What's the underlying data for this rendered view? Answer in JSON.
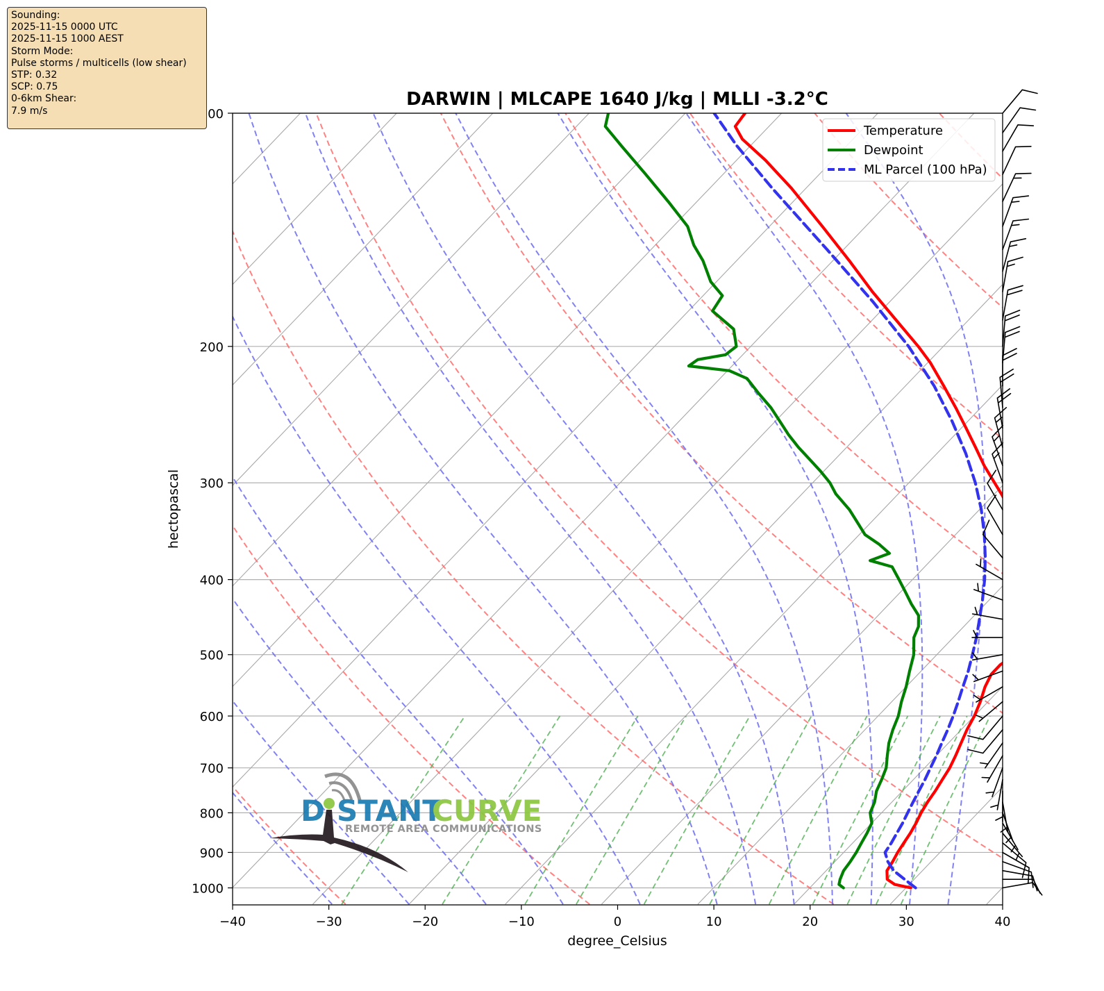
{
  "info_box": {
    "lines": [
      "Sounding:",
      "2025-11-15 0000 UTC",
      "2025-11-15 1000 AEST",
      "Storm Mode:",
      "Pulse storms / multicells (low shear)",
      "STP: 0.32",
      "SCP: 0.75",
      "0-6km Shear:",
      "7.9 m/s"
    ]
  },
  "logo": {
    "text_left": "D",
    "text_mid": "STANT",
    "text_right": "CURVE",
    "tagline": "REMOTE AREA COMMUNICATIONS"
  },
  "colors": {
    "temperature": "#ff0000",
    "dewpoint": "#008000",
    "parcel": "#3333ee",
    "dry_adiabat": "#ff6b6b",
    "moist_adiabat": "#6b6bee",
    "mixing_ratio": "#4caf50",
    "logo_blue": "#1a7bb0",
    "logo_green": "#8cc63f"
  },
  "chart_data": {
    "type": "skew-t",
    "title": "DARWIN | MLCAPE 1640 J/kg | MLLI -3.2°C",
    "xlabel": "degree_Celsius",
    "ylabel": "hectopascal",
    "xlim": [
      -40,
      40
    ],
    "ylim": [
      1050,
      100
    ],
    "y_scale": "log",
    "x_ticks": [
      "−40",
      "−30",
      "−20",
      "−10",
      "0",
      "10",
      "20",
      "30",
      "40"
    ],
    "y_ticks": [
      "100",
      "200",
      "300",
      "400",
      "500",
      "600",
      "700",
      "800",
      "900",
      "1000"
    ],
    "legend_position": "top-right",
    "series": [
      {
        "name": "Temperature",
        "style": "solid",
        "points": [
          [
            1000,
            30.5
          ],
          [
            990,
            28.5
          ],
          [
            975,
            27.2
          ],
          [
            950,
            26.3
          ],
          [
            925,
            26.0
          ],
          [
            900,
            25.6
          ],
          [
            875,
            25.3
          ],
          [
            850,
            25.0
          ],
          [
            825,
            24.6
          ],
          [
            800,
            24.1
          ],
          [
            775,
            23.7
          ],
          [
            750,
            23.4
          ],
          [
            725,
            23.0
          ],
          [
            700,
            22.6
          ],
          [
            675,
            22.0
          ],
          [
            650,
            21.3
          ],
          [
            625,
            20.6
          ],
          [
            600,
            20.0
          ],
          [
            575,
            19.2
          ],
          [
            550,
            18.2
          ],
          [
            530,
            17.6
          ],
          [
            515,
            17.6
          ],
          [
            500,
            18.2
          ],
          [
            485,
            17.6
          ],
          [
            470,
            17.0
          ],
          [
            455,
            16.3
          ],
          [
            440,
            15.8
          ],
          [
            425,
            15.0
          ],
          [
            410,
            13.8
          ],
          [
            400,
            12.9
          ],
          [
            385,
            11.3
          ],
          [
            370,
            9.5
          ],
          [
            355,
            7.6
          ],
          [
            340,
            5.4
          ],
          [
            325,
            3.2
          ],
          [
            310,
            0.7
          ],
          [
            300,
            -1.1
          ],
          [
            285,
            -3.9
          ],
          [
            270,
            -6.6
          ],
          [
            255,
            -9.5
          ],
          [
            240,
            -12.6
          ],
          [
            225,
            -16.0
          ],
          [
            210,
            -19.7
          ],
          [
            200,
            -22.6
          ],
          [
            185,
            -27.5
          ],
          [
            170,
            -32.8
          ],
          [
            155,
            -38.3
          ],
          [
            140,
            -44.5
          ],
          [
            125,
            -51.5
          ],
          [
            115,
            -57.0
          ],
          [
            108,
            -61.5
          ],
          [
            104,
            -63.5
          ],
          [
            100,
            -63.8
          ]
        ]
      },
      {
        "name": "Dewpoint",
        "style": "solid",
        "points": [
          [
            1000,
            23.5
          ],
          [
            990,
            22.7
          ],
          [
            975,
            22.3
          ],
          [
            950,
            21.8
          ],
          [
            925,
            21.6
          ],
          [
            900,
            21.3
          ],
          [
            875,
            20.9
          ],
          [
            850,
            20.5
          ],
          [
            825,
            20.0
          ],
          [
            800,
            18.8
          ],
          [
            775,
            18.2
          ],
          [
            750,
            17.3
          ],
          [
            725,
            16.7
          ],
          [
            700,
            16.0
          ],
          [
            675,
            14.9
          ],
          [
            650,
            13.8
          ],
          [
            625,
            12.9
          ],
          [
            600,
            12.1
          ],
          [
            575,
            11.0
          ],
          [
            550,
            10.0
          ],
          [
            525,
            8.8
          ],
          [
            500,
            7.6
          ],
          [
            475,
            5.9
          ],
          [
            460,
            5.3
          ],
          [
            445,
            4.2
          ],
          [
            430,
            2.3
          ],
          [
            415,
            0.5
          ],
          [
            400,
            -1.4
          ],
          [
            385,
            -3.4
          ],
          [
            378,
            -6.3
          ],
          [
            370,
            -5.0
          ],
          [
            360,
            -7.0
          ],
          [
            350,
            -9.4
          ],
          [
            340,
            -11.0
          ],
          [
            325,
            -13.5
          ],
          [
            310,
            -16.5
          ],
          [
            300,
            -18.2
          ],
          [
            290,
            -20.3
          ],
          [
            280,
            -22.6
          ],
          [
            270,
            -25.0
          ],
          [
            260,
            -27.3
          ],
          [
            250,
            -29.5
          ],
          [
            240,
            -31.8
          ],
          [
            230,
            -34.5
          ],
          [
            220,
            -37.2
          ],
          [
            215,
            -39.8
          ],
          [
            212,
            -44.5
          ],
          [
            208,
            -44.2
          ],
          [
            205,
            -41.8
          ],
          [
            200,
            -41.5
          ],
          [
            190,
            -43.5
          ],
          [
            180,
            -47.5
          ],
          [
            172,
            -48.0
          ],
          [
            165,
            -50.6
          ],
          [
            155,
            -53.5
          ],
          [
            148,
            -56.0
          ],
          [
            140,
            -58.5
          ],
          [
            130,
            -63.0
          ],
          [
            120,
            -68.0
          ],
          [
            110,
            -73.5
          ],
          [
            104,
            -77.0
          ],
          [
            100,
            -78.0
          ]
        ]
      },
      {
        "name": "ML Parcel (100 hPa)",
        "style": "dashed",
        "points": [
          [
            1000,
            31.0
          ],
          [
            975,
            29.0
          ],
          [
            950,
            27.0
          ],
          [
            925,
            25.5
          ],
          [
            900,
            24.3
          ],
          [
            875,
            24.0
          ],
          [
            850,
            23.6
          ],
          [
            825,
            23.2
          ],
          [
            800,
            22.7
          ],
          [
            775,
            22.2
          ],
          [
            750,
            21.7
          ],
          [
            725,
            21.2
          ],
          [
            700,
            20.6
          ],
          [
            675,
            20.0
          ],
          [
            650,
            19.3
          ],
          [
            625,
            18.6
          ],
          [
            600,
            17.8
          ],
          [
            575,
            16.9
          ],
          [
            550,
            15.9
          ],
          [
            525,
            14.9
          ],
          [
            500,
            13.7
          ],
          [
            475,
            12.4
          ],
          [
            450,
            10.9
          ],
          [
            425,
            9.3
          ],
          [
            400,
            7.5
          ],
          [
            375,
            5.4
          ],
          [
            350,
            3.0
          ],
          [
            325,
            0.2
          ],
          [
            300,
            -3.1
          ],
          [
            275,
            -7.0
          ],
          [
            250,
            -11.6
          ],
          [
            225,
            -17.0
          ],
          [
            200,
            -23.6
          ],
          [
            175,
            -31.8
          ],
          [
            150,
            -41.7
          ],
          [
            125,
            -53.5
          ],
          [
            110,
            -61.5
          ],
          [
            100,
            -67.0
          ]
        ]
      }
    ],
    "wind_barbs": [
      {
        "p": 1000,
        "dir": 80,
        "kt": 10
      },
      {
        "p": 975,
        "dir": 90,
        "kt": 10
      },
      {
        "p": 950,
        "dir": 100,
        "kt": 10
      },
      {
        "p": 925,
        "dir": 110,
        "kt": 10
      },
      {
        "p": 900,
        "dir": 120,
        "kt": 10
      },
      {
        "p": 875,
        "dir": 130,
        "kt": 10
      },
      {
        "p": 850,
        "dir": 140,
        "kt": 5
      },
      {
        "p": 825,
        "dir": 150,
        "kt": 5
      },
      {
        "p": 800,
        "dir": 160,
        "kt": 5
      },
      {
        "p": 775,
        "dir": 170,
        "kt": 5
      },
      {
        "p": 750,
        "dir": 180,
        "kt": 5
      },
      {
        "p": 725,
        "dir": 190,
        "kt": 5
      },
      {
        "p": 700,
        "dir": 200,
        "kt": 5
      },
      {
        "p": 675,
        "dir": 210,
        "kt": 5
      },
      {
        "p": 650,
        "dir": 215,
        "kt": 5
      },
      {
        "p": 625,
        "dir": 220,
        "kt": 10
      },
      {
        "p": 600,
        "dir": 220,
        "kt": 10
      },
      {
        "p": 575,
        "dir": 230,
        "kt": 5
      },
      {
        "p": 550,
        "dir": 240,
        "kt": 5
      },
      {
        "p": 525,
        "dir": 250,
        "kt": 5
      },
      {
        "p": 500,
        "dir": 260,
        "kt": 5
      },
      {
        "p": 475,
        "dir": 270,
        "kt": 5
      },
      {
        "p": 450,
        "dir": 280,
        "kt": 5
      },
      {
        "p": 425,
        "dir": 290,
        "kt": 5
      },
      {
        "p": 400,
        "dir": 300,
        "kt": 5
      },
      {
        "p": 375,
        "dir": 320,
        "kt": 10
      },
      {
        "p": 350,
        "dir": 330,
        "kt": 10
      },
      {
        "p": 325,
        "dir": 330,
        "kt": 10
      },
      {
        "p": 300,
        "dir": 340,
        "kt": 15
      },
      {
        "p": 285,
        "dir": 340,
        "kt": 15
      },
      {
        "p": 270,
        "dir": 345,
        "kt": 15
      },
      {
        "p": 255,
        "dir": 350,
        "kt": 20
      },
      {
        "p": 240,
        "dir": 355,
        "kt": 20
      },
      {
        "p": 225,
        "dir": 0,
        "kt": 20
      },
      {
        "p": 210,
        "dir": 5,
        "kt": 20
      },
      {
        "p": 200,
        "dir": 5,
        "kt": 20
      },
      {
        "p": 185,
        "dir": 10,
        "kt": 20
      },
      {
        "p": 170,
        "dir": 10,
        "kt": 15
      },
      {
        "p": 160,
        "dir": 15,
        "kt": 15
      },
      {
        "p": 150,
        "dir": 20,
        "kt": 15
      },
      {
        "p": 140,
        "dir": 20,
        "kt": 15
      },
      {
        "p": 130,
        "dir": 25,
        "kt": 15
      },
      {
        "p": 120,
        "dir": 25,
        "kt": 10
      },
      {
        "p": 112,
        "dir": 30,
        "kt": 10
      },
      {
        "p": 106,
        "dir": 35,
        "kt": 10
      },
      {
        "p": 100,
        "dir": 40,
        "kt": 10
      }
    ]
  }
}
